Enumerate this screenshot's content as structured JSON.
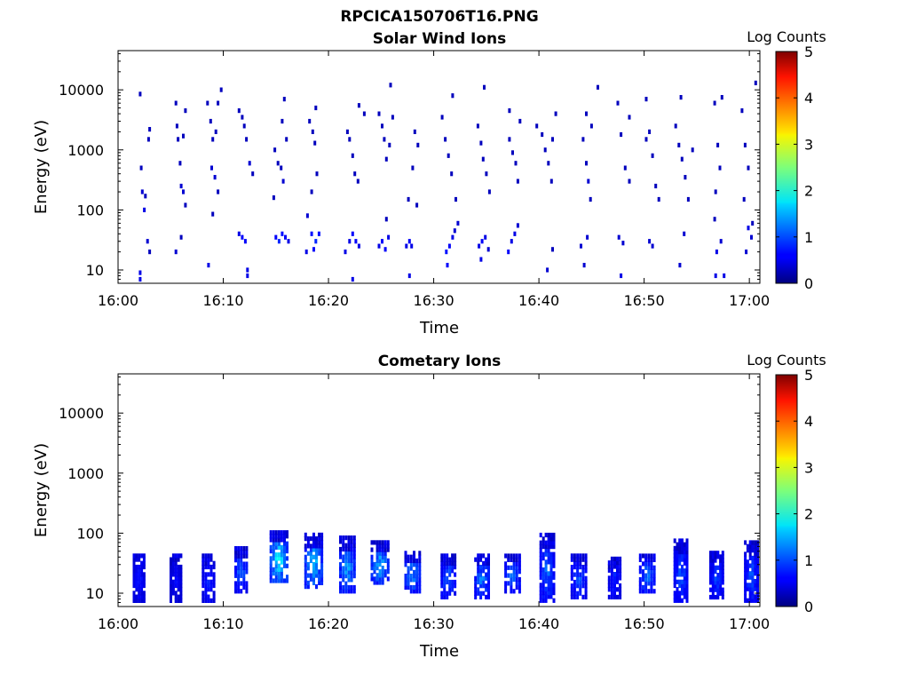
{
  "figure_title": "RPCICA150706T16.PNG",
  "chart_data": [
    {
      "type": "heatmap",
      "title": "Solar Wind Ions",
      "xlabel": "Time",
      "ylabel": "Energy (eV)",
      "x_ticks": [
        "16:00",
        "16:10",
        "16:20",
        "16:30",
        "16:40",
        "16:50",
        "17:00"
      ],
      "x_range_min": [
        0,
        61
      ],
      "y_ticks": [
        "10",
        "100",
        "1000",
        "10000"
      ],
      "y_scale": "log",
      "y_range": [
        6,
        45000
      ],
      "colorbar": {
        "label": "Log Counts",
        "range": [
          0,
          5
        ],
        "ticks": [
          "0",
          "1",
          "2",
          "3",
          "4",
          "5"
        ],
        "colormap": "jet"
      },
      "bursts_min": [
        2.2,
        5.6,
        9.0,
        12.5,
        15.5,
        18.5,
        22.3,
        25.3,
        27.7,
        31.5,
        34.5,
        37.5,
        41.0,
        44.7,
        47.8,
        50.8,
        53.8,
        57.0,
        60.0
      ],
      "pixels": [
        [
          2.1,
          8500,
          0.3
        ],
        [
          2.2,
          500,
          0.3
        ],
        [
          2.3,
          200,
          0.4
        ],
        [
          2.5,
          100,
          0.5
        ],
        [
          2.6,
          170,
          0.3
        ],
        [
          2.8,
          30,
          0.4
        ],
        [
          3.0,
          20,
          0.3
        ],
        [
          2.1,
          7,
          0.5
        ],
        [
          2.1,
          9,
          0.5
        ],
        [
          2.9,
          1500,
          0.3
        ],
        [
          3.0,
          2200,
          0.3
        ],
        [
          5.5,
          6000,
          0.3
        ],
        [
          5.6,
          2500,
          0.3
        ],
        [
          5.7,
          1500,
          0.3
        ],
        [
          5.9,
          600,
          0.3
        ],
        [
          6.0,
          250,
          0.4
        ],
        [
          6.2,
          200,
          0.4
        ],
        [
          6.4,
          120,
          0.3
        ],
        [
          6.2,
          1700,
          0.3
        ],
        [
          6.4,
          4500,
          0.3
        ],
        [
          5.5,
          20,
          0.4
        ],
        [
          6.0,
          35,
          0.3
        ],
        [
          8.5,
          6000,
          0.3
        ],
        [
          8.8,
          3000,
          0.3
        ],
        [
          9.0,
          1500,
          0.3
        ],
        [
          8.9,
          500,
          0.4
        ],
        [
          9.2,
          350,
          0.4
        ],
        [
          9.5,
          200,
          0.3
        ],
        [
          9.8,
          10000,
          0.3
        ],
        [
          9.5,
          6000,
          0.3
        ],
        [
          9.0,
          85,
          0.3
        ],
        [
          8.6,
          12,
          0.5
        ],
        [
          9.3,
          2000,
          0.3
        ],
        [
          11.5,
          4500,
          0.3
        ],
        [
          11.8,
          3500,
          0.3
        ],
        [
          12.0,
          2500,
          0.3
        ],
        [
          12.2,
          1500,
          0.3
        ],
        [
          12.5,
          600,
          0.4
        ],
        [
          12.8,
          400,
          0.3
        ],
        [
          11.5,
          40,
          0.5
        ],
        [
          11.8,
          35,
          0.6
        ],
        [
          12.1,
          30,
          0.6
        ],
        [
          12.3,
          8,
          0.5
        ],
        [
          12.3,
          10,
          0.5
        ],
        [
          14.9,
          1000,
          0.3
        ],
        [
          15.2,
          600,
          0.3
        ],
        [
          15.5,
          500,
          0.3
        ],
        [
          15.7,
          300,
          0.4
        ],
        [
          14.8,
          160,
          0.3
        ],
        [
          15.0,
          35,
          0.6
        ],
        [
          15.3,
          30,
          0.8
        ],
        [
          15.6,
          40,
          0.7
        ],
        [
          15.9,
          35,
          0.6
        ],
        [
          16.2,
          30,
          0.5
        ],
        [
          15.8,
          7000,
          0.3
        ],
        [
          16.0,
          1500,
          0.3
        ],
        [
          15.6,
          3000,
          0.3
        ],
        [
          18.2,
          3000,
          0.3
        ],
        [
          18.5,
          2000,
          0.3
        ],
        [
          18.7,
          1300,
          0.3
        ],
        [
          18.9,
          400,
          0.3
        ],
        [
          18.4,
          200,
          0.3
        ],
        [
          18.0,
          80,
          0.4
        ],
        [
          18.4,
          40,
          0.7
        ],
        [
          18.8,
          30,
          0.8
        ],
        [
          19.1,
          40,
          0.7
        ],
        [
          18.6,
          22,
          0.6
        ],
        [
          17.9,
          20,
          0.5
        ],
        [
          18.8,
          5000,
          0.3
        ],
        [
          21.8,
          2000,
          0.3
        ],
        [
          22.0,
          1500,
          0.3
        ],
        [
          22.3,
          800,
          0.3
        ],
        [
          22.5,
          400,
          0.3
        ],
        [
          22.8,
          300,
          0.3
        ],
        [
          22.0,
          30,
          0.5
        ],
        [
          22.3,
          40,
          0.6
        ],
        [
          22.6,
          30,
          0.6
        ],
        [
          22.9,
          25,
          0.5
        ],
        [
          21.6,
          20,
          0.5
        ],
        [
          22.3,
          7,
          0.5
        ],
        [
          22.9,
          5500,
          0.3
        ],
        [
          23.4,
          4000,
          0.3
        ],
        [
          24.8,
          4000,
          0.3
        ],
        [
          25.1,
          2500,
          0.3
        ],
        [
          25.3,
          1500,
          0.3
        ],
        [
          25.5,
          700,
          0.3
        ],
        [
          25.8,
          1200,
          0.3
        ],
        [
          26.1,
          3500,
          0.3
        ],
        [
          25.9,
          12000,
          0.3
        ],
        [
          24.8,
          25,
          0.5
        ],
        [
          25.1,
          30,
          0.6
        ],
        [
          25.4,
          22,
          0.6
        ],
        [
          25.7,
          35,
          0.5
        ],
        [
          25.5,
          70,
          0.3
        ],
        [
          27.4,
          25,
          0.5
        ],
        [
          27.7,
          30,
          0.6
        ],
        [
          27.9,
          25,
          0.5
        ],
        [
          27.7,
          8,
          0.5
        ],
        [
          28.2,
          2000,
          0.3
        ],
        [
          28.5,
          1200,
          0.3
        ],
        [
          28.0,
          500,
          0.3
        ],
        [
          28.4,
          120,
          0.3
        ],
        [
          27.6,
          150,
          0.3
        ],
        [
          30.8,
          3500,
          0.3
        ],
        [
          31.1,
          1500,
          0.3
        ],
        [
          31.4,
          800,
          0.3
        ],
        [
          31.7,
          400,
          0.3
        ],
        [
          32.1,
          150,
          0.3
        ],
        [
          31.8,
          8000,
          0.3
        ],
        [
          31.2,
          20,
          0.7
        ],
        [
          31.5,
          25,
          0.6
        ],
        [
          31.8,
          35,
          0.5
        ],
        [
          32.0,
          45,
          0.4
        ],
        [
          31.3,
          12,
          0.6
        ],
        [
          32.3,
          60,
          0.4
        ],
        [
          34.2,
          2500,
          0.3
        ],
        [
          34.5,
          1300,
          0.3
        ],
        [
          34.7,
          700,
          0.3
        ],
        [
          35.0,
          400,
          0.3
        ],
        [
          35.3,
          200,
          0.3
        ],
        [
          34.8,
          11000,
          0.3
        ],
        [
          34.3,
          25,
          0.5
        ],
        [
          34.6,
          30,
          0.6
        ],
        [
          34.9,
          35,
          0.5
        ],
        [
          35.2,
          22,
          0.4
        ],
        [
          34.5,
          15,
          0.5
        ],
        [
          37.2,
          1500,
          0.3
        ],
        [
          37.5,
          900,
          0.3
        ],
        [
          37.8,
          600,
          0.3
        ],
        [
          38.0,
          300,
          0.3
        ],
        [
          37.2,
          4500,
          0.3
        ],
        [
          38.2,
          3000,
          0.3
        ],
        [
          37.1,
          20,
          0.6
        ],
        [
          37.4,
          30,
          0.5
        ],
        [
          37.7,
          40,
          0.5
        ],
        [
          38.0,
          55,
          0.4
        ],
        [
          40.3,
          1800,
          0.3
        ],
        [
          40.6,
          1000,
          0.3
        ],
        [
          40.9,
          600,
          0.3
        ],
        [
          41.2,
          300,
          0.3
        ],
        [
          41.6,
          4000,
          0.3
        ],
        [
          41.3,
          1500,
          0.3
        ],
        [
          39.8,
          2500,
          0.3
        ],
        [
          40.8,
          10,
          0.4
        ],
        [
          41.3,
          22,
          0.3
        ],
        [
          44.2,
          1500,
          0.3
        ],
        [
          44.5,
          600,
          0.3
        ],
        [
          44.7,
          300,
          0.4
        ],
        [
          44.9,
          150,
          0.3
        ],
        [
          44.5,
          4000,
          0.3
        ],
        [
          45.6,
          11000,
          0.3
        ],
        [
          44.0,
          25,
          0.4
        ],
        [
          44.6,
          35,
          0.4
        ],
        [
          44.3,
          12,
          0.4
        ],
        [
          45.0,
          2500,
          0.3
        ],
        [
          47.5,
          6000,
          0.3
        ],
        [
          47.8,
          1800,
          0.3
        ],
        [
          48.2,
          500,
          0.3
        ],
        [
          48.6,
          300,
          0.3
        ],
        [
          47.6,
          35,
          0.4
        ],
        [
          48.0,
          28,
          0.4
        ],
        [
          47.8,
          8,
          0.5
        ],
        [
          48.6,
          3500,
          0.3
        ],
        [
          50.2,
          7000,
          0.3
        ],
        [
          50.5,
          2000,
          0.3
        ],
        [
          50.8,
          800,
          0.3
        ],
        [
          51.1,
          250,
          0.3
        ],
        [
          51.4,
          150,
          0.3
        ],
        [
          50.5,
          30,
          0.4
        ],
        [
          50.8,
          25,
          0.4
        ],
        [
          50.2,
          1500,
          0.3
        ],
        [
          53.0,
          2500,
          0.3
        ],
        [
          53.3,
          1200,
          0.3
        ],
        [
          53.6,
          700,
          0.3
        ],
        [
          53.9,
          350,
          0.3
        ],
        [
          54.2,
          150,
          0.3
        ],
        [
          53.5,
          7500,
          0.3
        ],
        [
          53.8,
          40,
          0.4
        ],
        [
          53.4,
          12,
          0.4
        ],
        [
          54.6,
          1000,
          0.3
        ],
        [
          56.7,
          6000,
          0.3
        ],
        [
          57.0,
          1200,
          0.3
        ],
        [
          57.2,
          500,
          0.3
        ],
        [
          56.8,
          200,
          0.3
        ],
        [
          57.4,
          7500,
          0.3
        ],
        [
          56.9,
          20,
          0.5
        ],
        [
          57.3,
          30,
          0.4
        ],
        [
          57.6,
          8,
          0.5
        ],
        [
          56.8,
          8,
          0.5
        ],
        [
          56.7,
          70,
          0.3
        ],
        [
          59.3,
          4500,
          0.3
        ],
        [
          59.6,
          1200,
          0.3
        ],
        [
          59.9,
          500,
          0.3
        ],
        [
          59.5,
          150,
          0.3
        ],
        [
          60.6,
          13000,
          0.3
        ],
        [
          59.9,
          50,
          0.5
        ],
        [
          60.2,
          35,
          0.4
        ],
        [
          59.7,
          20,
          0.4
        ],
        [
          60.3,
          60,
          0.3
        ]
      ]
    },
    {
      "type": "heatmap",
      "title": "Cometary Ions",
      "xlabel": "Time",
      "ylabel": "Energy (eV)",
      "x_ticks": [
        "16:00",
        "16:10",
        "16:20",
        "16:30",
        "16:40",
        "16:50",
        "17:00"
      ],
      "x_range_min": [
        0,
        61
      ],
      "y_ticks": [
        "10",
        "100",
        "1000",
        "10000"
      ],
      "y_scale": "log",
      "y_range": [
        6,
        45000
      ],
      "colorbar": {
        "label": "Log Counts",
        "range": [
          0,
          5
        ],
        "ticks": [
          "0",
          "1",
          "2",
          "3",
          "4",
          "5"
        ],
        "colormap": "jet"
      },
      "bursts": [
        {
          "t": 2.0,
          "w": 1.2,
          "emin": 7,
          "emax": 45,
          "level": 0.5
        },
        {
          "t": 5.5,
          "w": 1.2,
          "emin": 7,
          "emax": 45,
          "level": 0.4
        },
        {
          "t": 8.6,
          "w": 1.3,
          "emin": 7,
          "emax": 45,
          "level": 0.6
        },
        {
          "t": 11.7,
          "w": 1.3,
          "emin": 10,
          "emax": 60,
          "level": 0.9
        },
        {
          "t": 15.3,
          "w": 1.8,
          "emin": 15,
          "emax": 110,
          "level": 1.6
        },
        {
          "t": 18.6,
          "w": 1.8,
          "emin": 12,
          "emax": 100,
          "level": 1.4
        },
        {
          "t": 21.8,
          "w": 1.6,
          "emin": 10,
          "emax": 90,
          "level": 1.2
        },
        {
          "t": 24.9,
          "w": 1.8,
          "emin": 14,
          "emax": 75,
          "level": 1.3
        },
        {
          "t": 28.0,
          "w": 1.6,
          "emin": 10,
          "emax": 50,
          "level": 1.1
        },
        {
          "t": 31.4,
          "w": 1.5,
          "emin": 8,
          "emax": 45,
          "level": 0.9
        },
        {
          "t": 34.6,
          "w": 1.5,
          "emin": 8,
          "emax": 45,
          "level": 1.0
        },
        {
          "t": 37.5,
          "w": 1.6,
          "emin": 10,
          "emax": 45,
          "level": 0.9
        },
        {
          "t": 40.8,
          "w": 1.5,
          "emin": 7,
          "emax": 100,
          "level": 0.9
        },
        {
          "t": 43.8,
          "w": 1.6,
          "emin": 8,
          "emax": 45,
          "level": 0.8
        },
        {
          "t": 47.2,
          "w": 1.3,
          "emin": 8,
          "emax": 40,
          "level": 0.6
        },
        {
          "t": 50.3,
          "w": 1.6,
          "emin": 10,
          "emax": 45,
          "level": 1.0
        },
        {
          "t": 53.5,
          "w": 1.4,
          "emin": 7,
          "emax": 80,
          "level": 0.8
        },
        {
          "t": 56.9,
          "w": 1.4,
          "emin": 8,
          "emax": 50,
          "level": 0.7
        },
        {
          "t": 60.2,
          "w": 1.4,
          "emin": 7,
          "emax": 75,
          "level": 0.8
        }
      ]
    }
  ]
}
